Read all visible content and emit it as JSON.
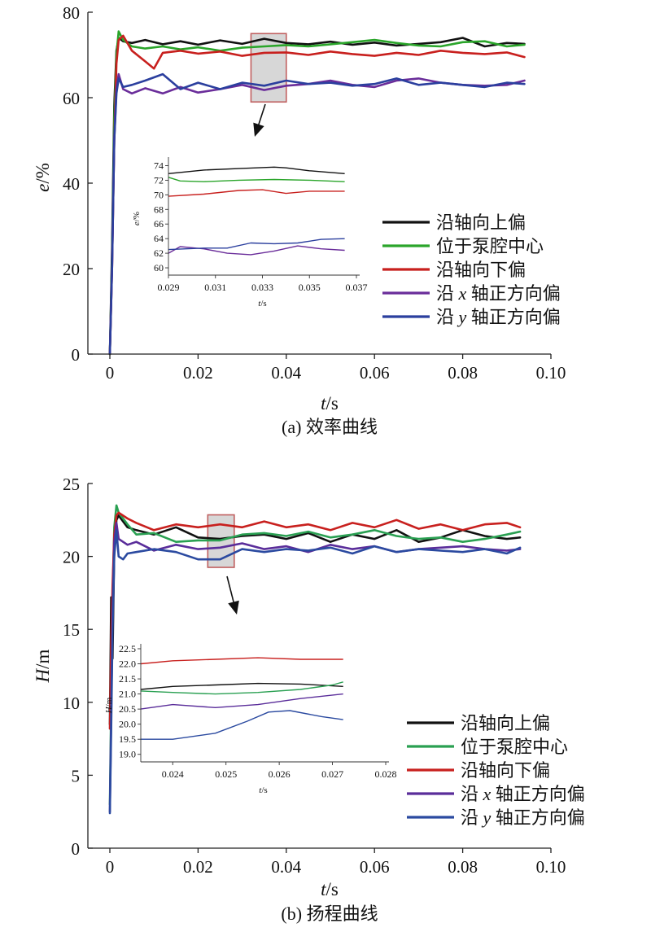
{
  "chart_data": [
    {
      "type": "line",
      "caption": "(a) 效率曲线",
      "xlabel_italic": "t",
      "xlabel_unit": "/s",
      "ylabel_italic": "e",
      "ylabel_unit": "/%",
      "xlim": [
        0,
        0.1
      ],
      "ylim": [
        0,
        80
      ],
      "xticks": [
        "0",
        "0.02",
        "0.04",
        "0.06",
        "0.08",
        "0.10"
      ],
      "xtick_values": [
        0,
        0.02,
        0.04,
        0.06,
        0.08,
        0.1
      ],
      "yticks": [
        "0",
        "20",
        "40",
        "60",
        "80"
      ],
      "ytick_values": [
        0,
        20,
        40,
        60,
        80
      ],
      "zoom_box": {
        "x": [
          0.032,
          0.04
        ],
        "y": [
          59,
          75
        ]
      },
      "legend": [
        {
          "label_pre": "沿轴向上偏",
          "var": "",
          "label_post": "",
          "color": "#111111"
        },
        {
          "label_pre": "位于泵腔中心",
          "var": "",
          "label_post": "",
          "color": "#2aa52a"
        },
        {
          "label_pre": "沿轴向下偏",
          "var": "",
          "label_post": "",
          "color": "#c8201e"
        },
        {
          "label_pre": "沿 ",
          "var": "x",
          "label_post": " 轴正方向偏",
          "color": "#6a2d9a"
        },
        {
          "label_pre": "沿 ",
          "var": "y",
          "label_post": " 轴正方向偏",
          "color": "#2b3f9e"
        }
      ],
      "series": [
        {
          "color": "#111111",
          "x": [
            0,
            0.0005,
            0.001,
            0.0015,
            0.002,
            0.003,
            0.005,
            0.008,
            0.012,
            0.016,
            0.02,
            0.025,
            0.03,
            0.035,
            0.04,
            0.045,
            0.05,
            0.055,
            0.06,
            0.065,
            0.07,
            0.075,
            0.08,
            0.085,
            0.09,
            0.094
          ],
          "y": [
            0,
            25,
            58,
            71,
            74,
            73.2,
            72.8,
            73.5,
            72.5,
            73.2,
            72.4,
            73.4,
            72.6,
            73.8,
            72.8,
            72.5,
            73.1,
            72.4,
            72.9,
            72.2,
            72.6,
            73.0,
            74.0,
            72.0,
            72.8,
            72.6
          ]
        },
        {
          "color": "#2aa52a",
          "x": [
            0,
            0.0005,
            0.001,
            0.0015,
            0.002,
            0.003,
            0.005,
            0.008,
            0.012,
            0.016,
            0.02,
            0.025,
            0.03,
            0.035,
            0.04,
            0.045,
            0.05,
            0.055,
            0.06,
            0.065,
            0.07,
            0.075,
            0.08,
            0.085,
            0.09,
            0.094
          ],
          "y": [
            0,
            22,
            55,
            70,
            75.5,
            73.5,
            72.0,
            71.5,
            72.0,
            71.3,
            71.8,
            71.0,
            71.7,
            72.0,
            72.3,
            72.0,
            72.5,
            73.0,
            73.5,
            72.8,
            72.2,
            72.0,
            73.0,
            73.2,
            72.0,
            72.4
          ]
        },
        {
          "color": "#c8201e",
          "x": [
            0,
            0.0005,
            0.001,
            0.0015,
            0.002,
            0.003,
            0.005,
            0.008,
            0.01,
            0.012,
            0.016,
            0.02,
            0.025,
            0.03,
            0.035,
            0.04,
            0.045,
            0.05,
            0.055,
            0.06,
            0.065,
            0.07,
            0.075,
            0.08,
            0.085,
            0.09,
            0.094
          ],
          "y": [
            0,
            20,
            50,
            68,
            73.5,
            74.5,
            71.0,
            68.5,
            66.8,
            70.5,
            71.0,
            70.3,
            70.8,
            69.8,
            70.5,
            70.6,
            70.0,
            70.8,
            70.2,
            69.8,
            70.5,
            70.0,
            71.0,
            70.5,
            70.2,
            70.6,
            69.5
          ]
        },
        {
          "color": "#6a2d9a",
          "x": [
            0,
            0.0005,
            0.001,
            0.0015,
            0.002,
            0.003,
            0.005,
            0.008,
            0.012,
            0.016,
            0.02,
            0.025,
            0.03,
            0.035,
            0.04,
            0.045,
            0.05,
            0.055,
            0.06,
            0.065,
            0.07,
            0.075,
            0.08,
            0.085,
            0.09,
            0.094
          ],
          "y": [
            0,
            20,
            50,
            62,
            65.5,
            62.0,
            61.0,
            62.2,
            61.0,
            62.5,
            61.2,
            62.0,
            63.0,
            61.8,
            62.8,
            63.2,
            64.0,
            63.0,
            62.5,
            64.0,
            64.5,
            63.5,
            63.0,
            62.8,
            63.0,
            64.0
          ]
        },
        {
          "color": "#2b3f9e",
          "x": [
            0,
            0.0005,
            0.001,
            0.0015,
            0.002,
            0.003,
            0.005,
            0.008,
            0.012,
            0.016,
            0.02,
            0.025,
            0.03,
            0.035,
            0.04,
            0.045,
            0.05,
            0.055,
            0.06,
            0.065,
            0.07,
            0.075,
            0.08,
            0.085,
            0.09,
            0.094
          ],
          "y": [
            0,
            20,
            50,
            61,
            64.5,
            62.5,
            63.0,
            64.0,
            65.5,
            62.0,
            63.5,
            62.0,
            63.5,
            62.8,
            64.0,
            63.2,
            63.5,
            62.8,
            63.2,
            64.5,
            63.0,
            63.5,
            63.0,
            62.5,
            63.5,
            63.2
          ]
        }
      ],
      "inset": {
        "xlim": [
          0.029,
          0.037
        ],
        "ylim": [
          59,
          74.5
        ],
        "xticks": [
          "0.029",
          "0.031",
          "0.033",
          "0.035",
          "0.037"
        ],
        "xtick_values": [
          0.029,
          0.031,
          0.033,
          0.035,
          0.037
        ],
        "yticks": [
          "60",
          "62",
          "64",
          "66",
          "68",
          "70",
          "72",
          "74"
        ],
        "ytick_values": [
          60,
          62,
          64,
          66,
          68,
          70,
          72,
          74
        ],
        "xlabel_italic": "t",
        "xlabel_unit": "/s",
        "ylabel_italic": "e",
        "ylabel_unit": "/%",
        "series": [
          {
            "color": "#111111",
            "x": [
              0.029,
              0.0305,
              0.032,
              0.0335,
              0.034,
              0.035,
              0.0365
            ],
            "y": [
              72.9,
              73.4,
              73.6,
              73.8,
              73.7,
              73.3,
              72.9
            ]
          },
          {
            "color": "#2aa52a",
            "x": [
              0.029,
              0.0295,
              0.0305,
              0.032,
              0.0335,
              0.035,
              0.0365
            ],
            "y": [
              72.4,
              71.9,
              71.8,
              72.0,
              72.1,
              72.0,
              71.8
            ]
          },
          {
            "color": "#c8201e",
            "x": [
              0.029,
              0.0305,
              0.032,
              0.033,
              0.034,
              0.035,
              0.0365
            ],
            "y": [
              69.8,
              70.1,
              70.6,
              70.7,
              70.2,
              70.5,
              70.5
            ]
          },
          {
            "color": "#6a2d9a",
            "x": [
              0.029,
              0.0295,
              0.0305,
              0.0315,
              0.0325,
              0.0335,
              0.0345,
              0.0355,
              0.0365
            ],
            "y": [
              62.0,
              62.9,
              62.6,
              62.0,
              61.8,
              62.3,
              63.0,
              62.6,
              62.4
            ]
          },
          {
            "color": "#2b3f9e",
            "x": [
              0.029,
              0.0305,
              0.0315,
              0.0325,
              0.0335,
              0.0345,
              0.0355,
              0.0365
            ],
            "y": [
              62.5,
              62.7,
              62.7,
              63.4,
              63.3,
              63.4,
              63.9,
              64.0
            ]
          }
        ]
      }
    },
    {
      "type": "line",
      "caption": "(b) 扬程曲线",
      "xlabel_italic": "t",
      "xlabel_unit": "/s",
      "ylabel_italic": "H",
      "ylabel_unit": "/m",
      "xlim": [
        0,
        0.1
      ],
      "ylim": [
        0,
        25
      ],
      "xticks": [
        "0",
        "0.02",
        "0.04",
        "0.06",
        "0.08",
        "0.10"
      ],
      "xtick_values": [
        0,
        0.02,
        0.04,
        0.06,
        0.08,
        0.1
      ],
      "yticks": [
        "0",
        "5",
        "10",
        "15",
        "20",
        "25"
      ],
      "ytick_values": [
        0,
        5,
        10,
        15,
        20,
        25
      ],
      "zoom_box": {
        "x": [
          0.0222,
          0.0282
        ],
        "y": [
          19.25,
          22.85
        ]
      },
      "legend": [
        {
          "label_pre": "沿轴向上偏",
          "var": "",
          "label_post": "",
          "color": "#111111"
        },
        {
          "label_pre": "位于泵腔中心",
          "var": "",
          "label_post": "",
          "color": "#2aa052"
        },
        {
          "label_pre": "沿轴向下偏",
          "var": "",
          "label_post": "",
          "color": "#c8201e"
        },
        {
          "label_pre": "沿 ",
          "var": "x",
          "label_post": " 轴正方向偏",
          "color": "#5a2d9a"
        },
        {
          "label_pre": "沿 ",
          "var": "y",
          "label_post": " 轴正方向偏",
          "color": "#2b4aa0"
        }
      ],
      "series": [
        {
          "color": "#111111",
          "x": [
            0,
            0.0003,
            0.0006,
            0.001,
            0.0015,
            0.002,
            0.004,
            0.006,
            0.01,
            0.015,
            0.02,
            0.025,
            0.03,
            0.035,
            0.04,
            0.045,
            0.05,
            0.055,
            0.06,
            0.065,
            0.07,
            0.075,
            0.08,
            0.085,
            0.09,
            0.093
          ],
          "y": [
            8.5,
            17.2,
            13,
            20.5,
            22.5,
            22.8,
            22.0,
            21.8,
            21.5,
            22.0,
            21.3,
            21.2,
            21.4,
            21.5,
            21.2,
            21.6,
            21.0,
            21.5,
            21.2,
            21.8,
            21.0,
            21.3,
            21.8,
            21.4,
            21.2,
            21.3
          ]
        },
        {
          "color": "#2aa052",
          "x": [
            0,
            0.0003,
            0.0006,
            0.001,
            0.0015,
            0.002,
            0.004,
            0.006,
            0.01,
            0.015,
            0.02,
            0.025,
            0.03,
            0.035,
            0.04,
            0.045,
            0.05,
            0.055,
            0.06,
            0.065,
            0.07,
            0.075,
            0.08,
            0.085,
            0.09,
            0.093
          ],
          "y": [
            3.0,
            10,
            17,
            22,
            23.5,
            23.0,
            22.2,
            21.5,
            21.6,
            21.0,
            21.1,
            21.1,
            21.5,
            21.6,
            21.4,
            21.7,
            21.3,
            21.5,
            21.8,
            21.4,
            21.2,
            21.3,
            21.0,
            21.2,
            21.5,
            21.7
          ]
        },
        {
          "color": "#c8201e",
          "x": [
            0,
            0.0003,
            0.0006,
            0.001,
            0.0015,
            0.002,
            0.004,
            0.006,
            0.01,
            0.015,
            0.02,
            0.025,
            0.03,
            0.035,
            0.04,
            0.045,
            0.05,
            0.055,
            0.06,
            0.065,
            0.07,
            0.075,
            0.08,
            0.085,
            0.09,
            0.093
          ],
          "y": [
            8.2,
            14,
            18,
            21.5,
            22.8,
            23.0,
            22.6,
            22.3,
            21.8,
            22.2,
            22.0,
            22.2,
            22.0,
            22.4,
            22.0,
            22.2,
            21.8,
            22.3,
            22.0,
            22.5,
            21.9,
            22.2,
            21.8,
            22.2,
            22.3,
            22.0
          ]
        },
        {
          "color": "#5a2d9a",
          "x": [
            0,
            0.0003,
            0.0006,
            0.001,
            0.0015,
            0.002,
            0.004,
            0.006,
            0.01,
            0.015,
            0.02,
            0.025,
            0.03,
            0.035,
            0.04,
            0.045,
            0.05,
            0.055,
            0.06,
            0.065,
            0.07,
            0.075,
            0.08,
            0.085,
            0.09,
            0.093
          ],
          "y": [
            2.5,
            9,
            16,
            21,
            22.3,
            21.2,
            20.8,
            21.0,
            20.4,
            20.8,
            20.5,
            20.6,
            20.9,
            20.5,
            20.7,
            20.3,
            20.8,
            20.5,
            20.7,
            20.3,
            20.5,
            20.6,
            20.7,
            20.5,
            20.4,
            20.5
          ]
        },
        {
          "color": "#2b4aa0",
          "x": [
            0,
            0.0003,
            0.0006,
            0.001,
            0.0015,
            0.002,
            0.003,
            0.004,
            0.006,
            0.01,
            0.015,
            0.02,
            0.025,
            0.03,
            0.035,
            0.04,
            0.045,
            0.05,
            0.055,
            0.06,
            0.065,
            0.07,
            0.075,
            0.08,
            0.085,
            0.09,
            0.093
          ],
          "y": [
            2.4,
            8,
            15,
            20,
            21.8,
            20.0,
            19.8,
            20.2,
            20.3,
            20.5,
            20.3,
            19.8,
            19.8,
            20.5,
            20.3,
            20.5,
            20.4,
            20.6,
            20.2,
            20.7,
            20.3,
            20.5,
            20.4,
            20.3,
            20.5,
            20.2,
            20.6
          ]
        }
      ],
      "inset": {
        "xlim": [
          0.0234,
          0.028
        ],
        "ylim": [
          18.75,
          22.5
        ],
        "xticks": [
          "0.024",
          "0.025",
          "0.026",
          "0.027",
          "0.028"
        ],
        "xtick_values": [
          0.024,
          0.025,
          0.026,
          0.027,
          0.028
        ],
        "yticks": [
          "19.0",
          "19.5",
          "20.0",
          "20.5",
          "21.0",
          "21.5",
          "22.0",
          "22.5"
        ],
        "ytick_values": [
          19.0,
          19.5,
          20.0,
          20.5,
          21.0,
          21.5,
          22.0,
          22.5
        ],
        "xlabel_italic": "t",
        "xlabel_unit": "/s",
        "ylabel_italic": "H",
        "ylabel_unit": "/m",
        "series": [
          {
            "color": "#c8201e",
            "x": [
              0.0234,
              0.024,
              0.0248,
              0.0256,
              0.0264,
              0.0272
            ],
            "y": [
              22.0,
              22.1,
              22.15,
              22.2,
              22.15,
              22.15
            ]
          },
          {
            "color": "#111111",
            "x": [
              0.0234,
              0.024,
              0.0248,
              0.0256,
              0.0264,
              0.0272
            ],
            "y": [
              21.15,
              21.25,
              21.3,
              21.35,
              21.33,
              21.25
            ]
          },
          {
            "color": "#2aa052",
            "x": [
              0.0234,
              0.024,
              0.0248,
              0.0256,
              0.0264,
              0.027,
              0.0272
            ],
            "y": [
              21.1,
              21.05,
              21.0,
              21.05,
              21.15,
              21.3,
              21.4
            ]
          },
          {
            "color": "#5a2d9a",
            "x": [
              0.0234,
              0.024,
              0.0248,
              0.0256,
              0.0264,
              0.0272
            ],
            "y": [
              20.5,
              20.65,
              20.55,
              20.65,
              20.85,
              21.0
            ]
          },
          {
            "color": "#2b4aa0",
            "x": [
              0.0234,
              0.024,
              0.0248,
              0.0254,
              0.0258,
              0.0262,
              0.0268,
              0.0272
            ],
            "y": [
              19.5,
              19.5,
              19.7,
              20.1,
              20.4,
              20.45,
              20.25,
              20.15
            ]
          }
        ]
      }
    }
  ]
}
